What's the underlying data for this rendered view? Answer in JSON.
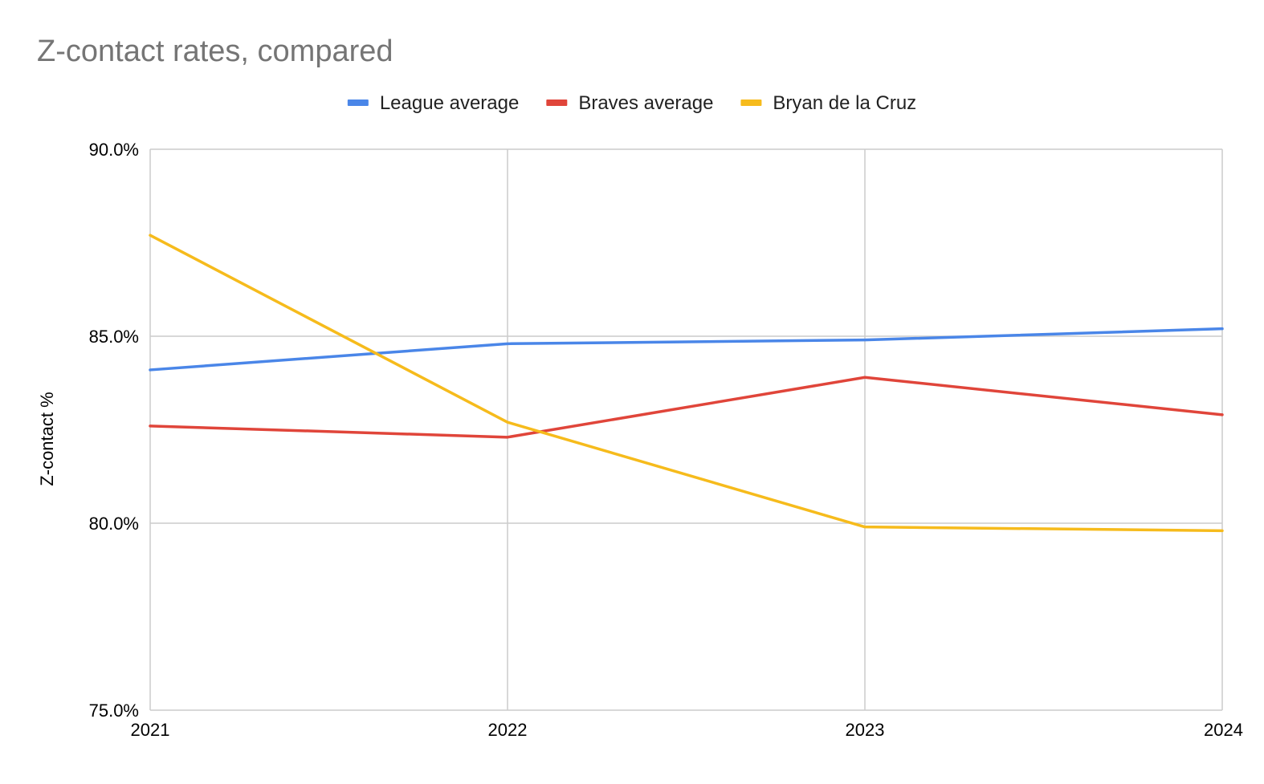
{
  "chart_data": {
    "type": "line",
    "title": "Z-contact rates, compared",
    "xlabel": "",
    "ylabel": "Z-contact %",
    "categories": [
      "2021",
      "2022",
      "2023",
      "2024"
    ],
    "y_ticks": [
      "75.0%",
      "80.0%",
      "85.0%",
      "90.0%"
    ],
    "ylim": [
      75,
      90
    ],
    "grid": true,
    "legend_position": "top",
    "series": [
      {
        "name": "League average",
        "color": "#4a86e8",
        "values": [
          84.1,
          84.8,
          84.9,
          85.2
        ]
      },
      {
        "name": "Braves average",
        "color": "#e0453a",
        "values": [
          82.6,
          82.3,
          83.9,
          82.9
        ]
      },
      {
        "name": "Bryan de la Cruz",
        "color": "#f6bb1c",
        "values": [
          87.7,
          82.7,
          79.9,
          79.8
        ]
      }
    ]
  }
}
